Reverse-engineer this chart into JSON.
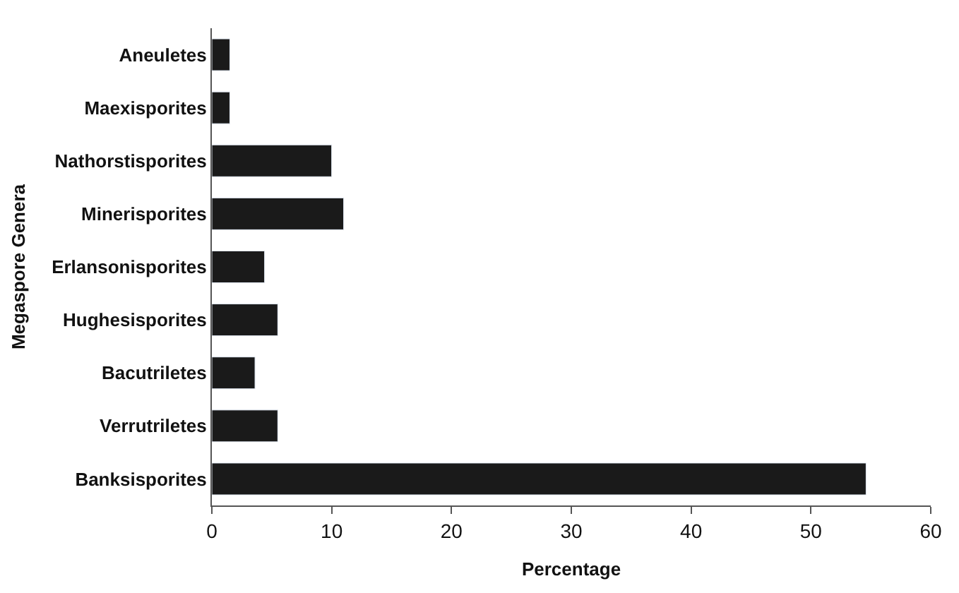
{
  "chart_data": {
    "type": "bar",
    "orientation": "horizontal",
    "xlabel": "Percentage",
    "ylabel": "Megaspore Genera",
    "categories": [
      "Aneuletes",
      "Maexisporites",
      "Nathorstisporites",
      "Minerisporites",
      "Erlansonisporites",
      "Hughesisporites",
      "Bacutriletes",
      "Verrutriletes",
      "Banksisporites"
    ],
    "values": [
      1.5,
      1.5,
      10,
      11,
      4.4,
      5.5,
      3.6,
      5.5,
      54.6
    ],
    "color": "#1a1a1a",
    "xlim": [
      0,
      60
    ],
    "xticks": [
      0,
      10,
      20,
      30,
      40,
      50,
      60
    ],
    "legend": false
  }
}
